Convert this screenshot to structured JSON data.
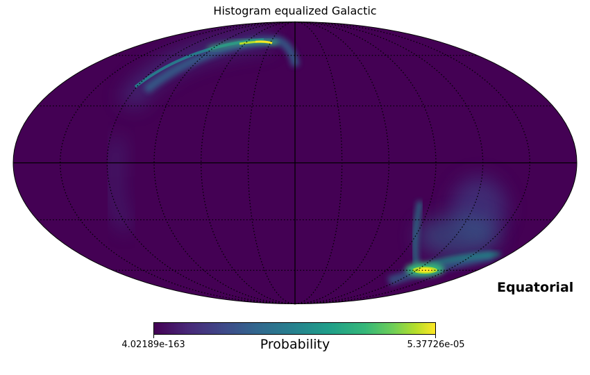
{
  "chart_data": {
    "type": "heatmap",
    "projection": "mollweide",
    "title": "Histogram equalized Galactic",
    "coordinate_label": "Equatorial",
    "colorbar": {
      "label": "Probability",
      "min_label": "4.02189e-163",
      "max_label": "5.37726e-05",
      "colormap": "viridis",
      "orientation": "horizontal",
      "placement": "bottom"
    },
    "graticule": {
      "meridian_step_deg": 30,
      "parallel_step_deg": 30,
      "style": "dotted"
    },
    "background_color": "#440154",
    "features": [
      {
        "name": "northern-arc",
        "lon_range_deg": [
          0,
          120
        ],
        "lat_range_deg": [
          30,
          85
        ],
        "level": "high"
      },
      {
        "name": "southern-hotspot",
        "lon_deg": -20,
        "lat_deg": -60,
        "level": "peak"
      },
      {
        "name": "southern-plume",
        "lon_range_deg": [
          -80,
          -10
        ],
        "lat_range_deg": [
          -60,
          -20
        ],
        "level": "medium"
      }
    ]
  }
}
